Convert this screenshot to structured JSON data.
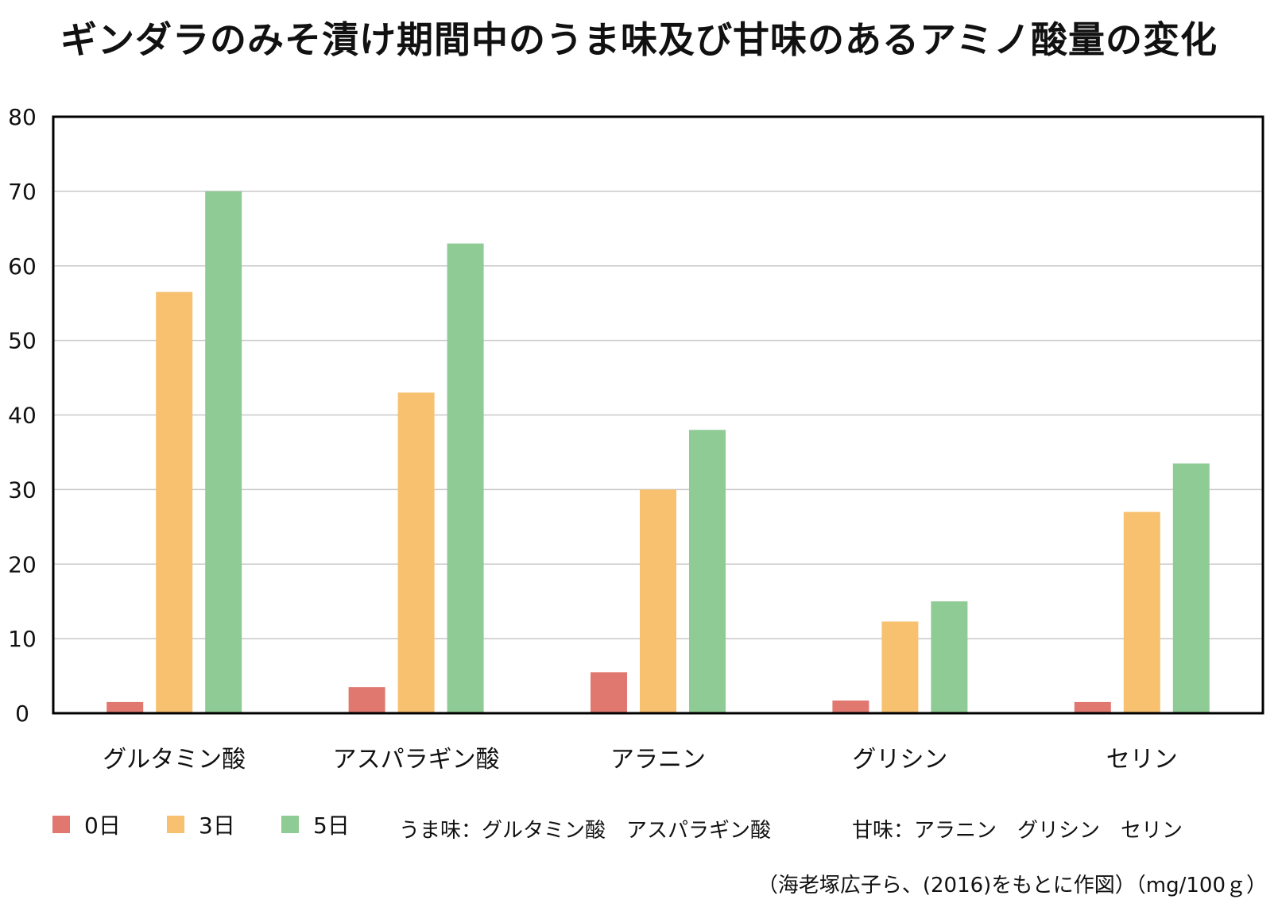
{
  "chart_data": {
    "type": "bar",
    "title": "ギンダラのみそ漬け期間中のうま味及び甘味のあるアミノ酸量の変化",
    "xlabel": "",
    "ylabel": "",
    "ylim": [
      0,
      80
    ],
    "yticks": [
      0,
      10,
      20,
      30,
      40,
      50,
      60,
      70,
      80
    ],
    "grid": true,
    "legend_position": "bottom",
    "categories": [
      "グルタミン酸",
      "アスパラギン酸",
      "アラニン",
      "グリシン",
      "セリン"
    ],
    "series": [
      {
        "name": "0日",
        "color": "#e07870",
        "values": [
          1.5,
          3.5,
          5.5,
          1.7,
          1.5
        ]
      },
      {
        "name": "3日",
        "color": "#f7c170",
        "values": [
          56.5,
          43,
          30,
          12.3,
          27
        ]
      },
      {
        "name": "5日",
        "color": "#8fcb94",
        "values": [
          70,
          63,
          38,
          15,
          33.5
        ]
      }
    ]
  },
  "notes": {
    "umami": "うま味：グルタミン酸　アスパラギン酸",
    "sweet": "甘味：アラニン　グリシン　セリン"
  },
  "source": "（海老塚広子ら、(2016)をもとに作図）（mg/100ｇ）"
}
